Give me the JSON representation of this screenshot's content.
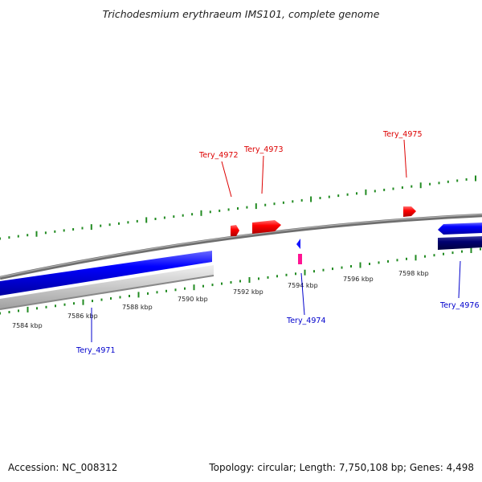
{
  "title": "Trichodesmium erythraeum IMS101, complete genome",
  "footer": {
    "accession": "Accession: NC_008312",
    "info": "Topology: circular; Length: 7,750,108 bp; Genes: 4,498"
  },
  "colors": {
    "forward_gene": "#ff0000",
    "reverse_gene": "#0000cc",
    "other_feature": "#ff1493",
    "ticks": "#228b22",
    "backbone": "#808080"
  },
  "ruler": {
    "labels": [
      "7584 kbp",
      "7586 kbp",
      "7588 kbp",
      "7590 kbp",
      "7592 kbp",
      "7594 kbp",
      "7596 kbp",
      "7598 kbp"
    ]
  },
  "genes": [
    {
      "name": "Tery_4971",
      "strand": "reverse"
    },
    {
      "name": "Tery_4972",
      "strand": "forward"
    },
    {
      "name": "Tery_4973",
      "strand": "forward"
    },
    {
      "name": "Tery_4974",
      "strand": "reverse"
    },
    {
      "name": "Tery_4975",
      "strand": "forward"
    },
    {
      "name": "Tery_4976",
      "strand": "reverse"
    }
  ]
}
